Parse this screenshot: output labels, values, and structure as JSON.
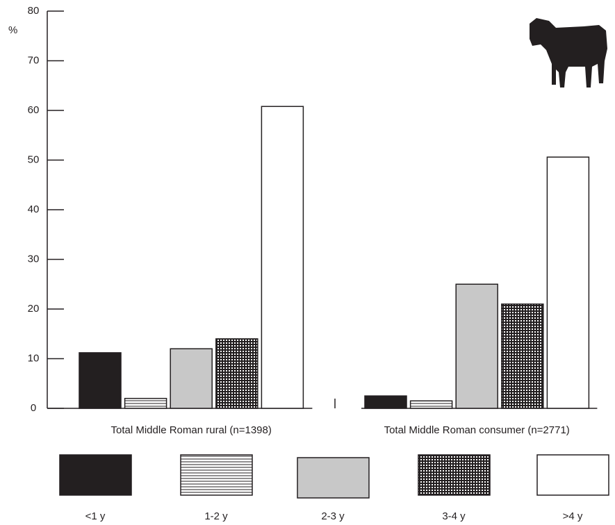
{
  "chart_data": {
    "type": "bar",
    "y_label": "%",
    "categories": [
      "Total Middle Roman rural (n=1398)",
      "Total Middle Roman consumer (n=2771)"
    ],
    "series": [
      {
        "name": "<1 y",
        "color": "#231f20",
        "pattern": "solid",
        "values": [
          11.2,
          2.5
        ]
      },
      {
        "name": "1-2 y",
        "color": "#ffffff",
        "pattern": "horizontal-lines",
        "values": [
          2,
          1.5
        ]
      },
      {
        "name": "2-3 y",
        "color": "#c8c8c8",
        "pattern": "solid",
        "values": [
          12,
          25
        ]
      },
      {
        "name": "3-4 y",
        "color": "#ffffff",
        "pattern": "grid",
        "values": [
          14,
          21
        ]
      },
      {
        "name": ">4 y",
        "color": "#ffffff",
        "pattern": "solid",
        "values": [
          60.8,
          50.6
        ]
      }
    ],
    "ylim": [
      0,
      80
    ],
    "yticks": [
      0,
      10,
      20,
      30,
      40,
      50,
      60,
      70,
      80
    ],
    "legend": "bottom"
  }
}
